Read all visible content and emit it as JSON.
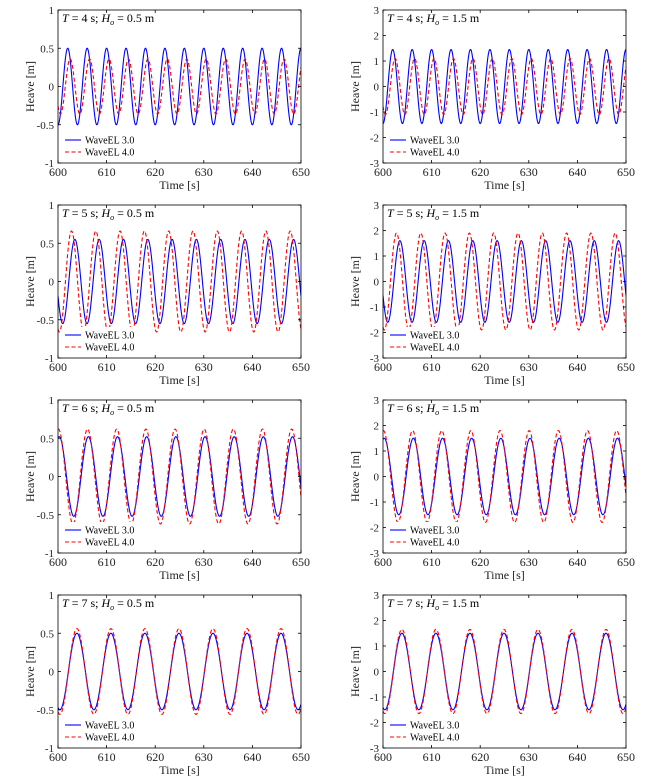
{
  "colors": {
    "series_1": "#0000ff",
    "series_2": "#ff0000",
    "axis": "#000000",
    "background": "#ffffff"
  },
  "chart_data": [
    {
      "type": "line",
      "annotation": "T = 4 s; Ho = 0.5 m",
      "xlabel": "Time [s]",
      "ylabel": "Heave [m]",
      "xlim": [
        600,
        650
      ],
      "ylim": [
        -1,
        1
      ],
      "xticks": [
        600,
        610,
        620,
        630,
        640,
        650
      ],
      "yticks": [
        -1,
        -0.5,
        0,
        0.5,
        1
      ],
      "grid": false,
      "legend_position": "bottom-left",
      "series": [
        {
          "name": "WaveEL 3.0",
          "style": "solid",
          "color": "#0000ff",
          "wave": {
            "amplitude": 0.5,
            "period": 4,
            "phase_deg": 270
          }
        },
        {
          "name": "WaveEL 4.0",
          "style": "dashed",
          "color": "#ff0000",
          "wave": {
            "amplitude": 0.36,
            "period": 4,
            "phase_deg": 225
          }
        }
      ]
    },
    {
      "type": "line",
      "annotation": "T = 4 s; Ho = 1.5 m",
      "xlabel": "Time [s]",
      "ylabel": "Heave [m]",
      "xlim": [
        600,
        650
      ],
      "ylim": [
        -3,
        3
      ],
      "xticks": [
        600,
        610,
        620,
        630,
        640,
        650
      ],
      "yticks": [
        -3,
        -2,
        -1,
        0,
        1,
        2,
        3
      ],
      "grid": false,
      "legend_position": "bottom-left",
      "series": [
        {
          "name": "WaveEL 3.0",
          "style": "solid",
          "color": "#0000ff",
          "wave": {
            "amplitude": 1.45,
            "period": 4,
            "phase_deg": 270
          }
        },
        {
          "name": "WaveEL 4.0",
          "style": "dashed",
          "color": "#ff0000",
          "wave": {
            "amplitude": 1.1,
            "period": 4,
            "phase_deg": 225
          }
        }
      ]
    },
    {
      "type": "line",
      "annotation": "T = 5 s; Ho = 0.5 m",
      "xlabel": "Time [s]",
      "ylabel": "Heave [m]",
      "xlim": [
        600,
        650
      ],
      "ylim": [
        -1,
        1
      ],
      "xticks": [
        600,
        610,
        620,
        630,
        640,
        650
      ],
      "yticks": [
        -1,
        -0.5,
        0,
        0.5,
        1
      ],
      "grid": false,
      "legend_position": "bottom-left",
      "series": [
        {
          "name": "WaveEL 3.0",
          "style": "solid",
          "color": "#0000ff",
          "wave": {
            "amplitude": 0.55,
            "period": 5,
            "phase_deg": 200
          }
        },
        {
          "name": "WaveEL 4.0",
          "style": "dashed",
          "color": "#ff0000",
          "wave": {
            "amplitude": 0.66,
            "period": 5,
            "phase_deg": 250
          }
        }
      ]
    },
    {
      "type": "line",
      "annotation": "T = 5 s; Ho = 1.5 m",
      "xlabel": "Time [s]",
      "ylabel": "Heave [m]",
      "xlim": [
        600,
        650
      ],
      "ylim": [
        -3,
        3
      ],
      "xticks": [
        600,
        610,
        620,
        630,
        640,
        650
      ],
      "yticks": [
        -3,
        -2,
        -1,
        0,
        1,
        2,
        3
      ],
      "grid": false,
      "legend_position": "bottom-left",
      "series": [
        {
          "name": "WaveEL 3.0",
          "style": "solid",
          "color": "#0000ff",
          "wave": {
            "amplitude": 1.6,
            "period": 5,
            "phase_deg": 200
          }
        },
        {
          "name": "WaveEL 4.0",
          "style": "dashed",
          "color": "#ff0000",
          "wave": {
            "amplitude": 1.9,
            "period": 5,
            "phase_deg": 250
          }
        }
      ]
    },
    {
      "type": "line",
      "annotation": "T = 6 s; Ho = 0.5 m",
      "xlabel": "Time [s]",
      "ylabel": "Heave [m]",
      "xlim": [
        600,
        650
      ],
      "ylim": [
        -1,
        1
      ],
      "xticks": [
        600,
        610,
        620,
        630,
        640,
        650
      ],
      "yticks": [
        -1,
        -0.5,
        0,
        0.5,
        1
      ],
      "grid": false,
      "legend_position": "bottom-left",
      "series": [
        {
          "name": "WaveEL 3.0",
          "style": "solid",
          "color": "#0000ff",
          "wave": {
            "amplitude": 0.52,
            "period": 6,
            "phase_deg": 75
          }
        },
        {
          "name": "WaveEL 4.0",
          "style": "dashed",
          "color": "#ff0000",
          "wave": {
            "amplitude": 0.62,
            "period": 6,
            "phase_deg": 85
          }
        }
      ]
    },
    {
      "type": "line",
      "annotation": "T = 6 s; Ho = 1.5 m",
      "xlabel": "Time [s]",
      "ylabel": "Heave [m]",
      "xlim": [
        600,
        650
      ],
      "ylim": [
        -3,
        3
      ],
      "xticks": [
        600,
        610,
        620,
        630,
        640,
        650
      ],
      "yticks": [
        -3,
        -2,
        -1,
        0,
        1,
        2,
        3
      ],
      "grid": false,
      "legend_position": "bottom-left",
      "series": [
        {
          "name": "WaveEL 3.0",
          "style": "solid",
          "color": "#0000ff",
          "wave": {
            "amplitude": 1.5,
            "period": 6,
            "phase_deg": 75
          }
        },
        {
          "name": "WaveEL 4.0",
          "style": "dashed",
          "color": "#ff0000",
          "wave": {
            "amplitude": 1.8,
            "period": 6,
            "phase_deg": 85
          }
        }
      ]
    },
    {
      "type": "line",
      "annotation": "T = 7 s; Ho = 0.5 m",
      "xlabel": "Time [s]",
      "ylabel": "Heave [m]",
      "xlim": [
        600,
        650
      ],
      "ylim": [
        -1,
        1
      ],
      "xticks": [
        600,
        610,
        620,
        630,
        640,
        650
      ],
      "yticks": [
        -1,
        -0.5,
        0,
        0.5,
        1
      ],
      "grid": false,
      "legend_position": "bottom-left",
      "series": [
        {
          "name": "WaveEL 3.0",
          "style": "solid",
          "color": "#0000ff",
          "wave": {
            "amplitude": 0.5,
            "period": 7,
            "phase_deg": 250
          }
        },
        {
          "name": "WaveEL 4.0",
          "style": "dashed",
          "color": "#ff0000",
          "wave": {
            "amplitude": 0.56,
            "period": 7,
            "phase_deg": 250
          }
        }
      ]
    },
    {
      "type": "line",
      "annotation": "T = 7 s; Ho = 1.5 m",
      "xlabel": "Time [s]",
      "ylabel": "Heave [m]",
      "xlim": [
        600,
        650
      ],
      "ylim": [
        -3,
        3
      ],
      "xticks": [
        600,
        610,
        620,
        630,
        640,
        650
      ],
      "yticks": [
        -3,
        -2,
        -1,
        0,
        1,
        2,
        3
      ],
      "grid": false,
      "legend_position": "bottom-left",
      "series": [
        {
          "name": "WaveEL 3.0",
          "style": "solid",
          "color": "#0000ff",
          "wave": {
            "amplitude": 1.5,
            "period": 7,
            "phase_deg": 250
          }
        },
        {
          "name": "WaveEL 4.0",
          "style": "dashed",
          "color": "#ff0000",
          "wave": {
            "amplitude": 1.65,
            "period": 7,
            "phase_deg": 250
          }
        }
      ]
    }
  ]
}
